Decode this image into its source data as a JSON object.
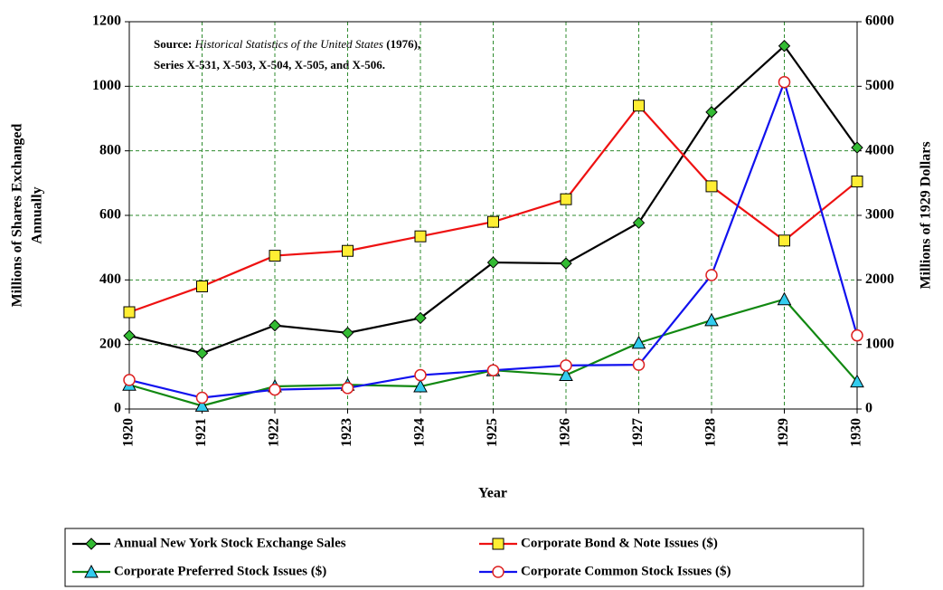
{
  "chart_data": {
    "type": "line",
    "annotation": [
      [
        "Source:",
        "Historical Statistics of the United States",
        "(1976),"
      ],
      [
        "Series X-531, X-503, X-504, X-505, and X-506."
      ]
    ],
    "xlabel": "Year",
    "ylabel": [
      "Millions of Shares Exchanged",
      "Annually"
    ],
    "y2label": "Millions of 1929 Dollars",
    "categories": [
      "1920",
      "1921",
      "1922",
      "1923",
      "1924",
      "1925",
      "1926",
      "1927",
      "1928",
      "1929",
      "1930"
    ],
    "ylim": [
      0,
      1200
    ],
    "yticks": [
      0,
      200,
      400,
      600,
      800,
      1000,
      1200
    ],
    "y2lim": [
      0,
      6000
    ],
    "y2ticks": [
      0,
      1000,
      2000,
      3000,
      4000,
      5000,
      6000
    ],
    "grid": true,
    "legend": "bottom",
    "series": [
      {
        "name": "Annual New York Stock Exchange Sales",
        "color": "#000000",
        "marker": "diamond",
        "marker_color": "#33bb33",
        "values": [
          227,
          173,
          259,
          236,
          282,
          454,
          451,
          577,
          920,
          1125,
          810
        ]
      },
      {
        "name": "Corporate Bond & Note Issues ($)",
        "color": "#ee1111",
        "marker": "square",
        "marker_color": "#ffee33",
        "axis": "y2",
        "values": [
          1500,
          1900,
          2375,
          2450,
          2675,
          2900,
          3250,
          4700,
          3450,
          2610,
          3525
        ]
      },
      {
        "name": "Corporate Preferred Stock Issues ($)",
        "color": "#118811",
        "marker": "triangle",
        "marker_color": "#33ccee",
        "axis": "y2",
        "values": [
          375,
          50,
          350,
          375,
          350,
          600,
          525,
          1025,
          1375,
          1700,
          425
        ]
      },
      {
        "name": "Corporate Common Stock Issues ($)",
        "color": "#1111ee",
        "marker": "circle",
        "marker_color": "#ffffff",
        "marker_edge": "#dd2222",
        "axis": "y2",
        "values": [
          450,
          175,
          300,
          325,
          525,
          600,
          675,
          685,
          2075,
          5065,
          1140
        ]
      }
    ]
  }
}
